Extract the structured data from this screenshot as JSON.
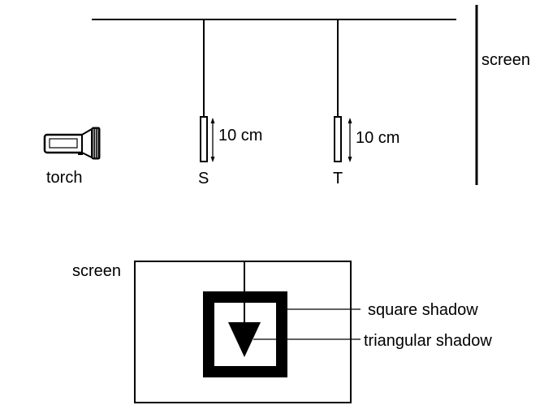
{
  "setup": {
    "torch_label": "torch",
    "object_s_label": "S",
    "object_s_height": "10 cm",
    "object_t_label": "T",
    "object_t_height": "10 cm",
    "screen_label": "screen"
  },
  "shadow_view": {
    "screen_label": "screen",
    "square_shadow_label": "square shadow",
    "triangular_shadow_label": "triangular shadow"
  }
}
